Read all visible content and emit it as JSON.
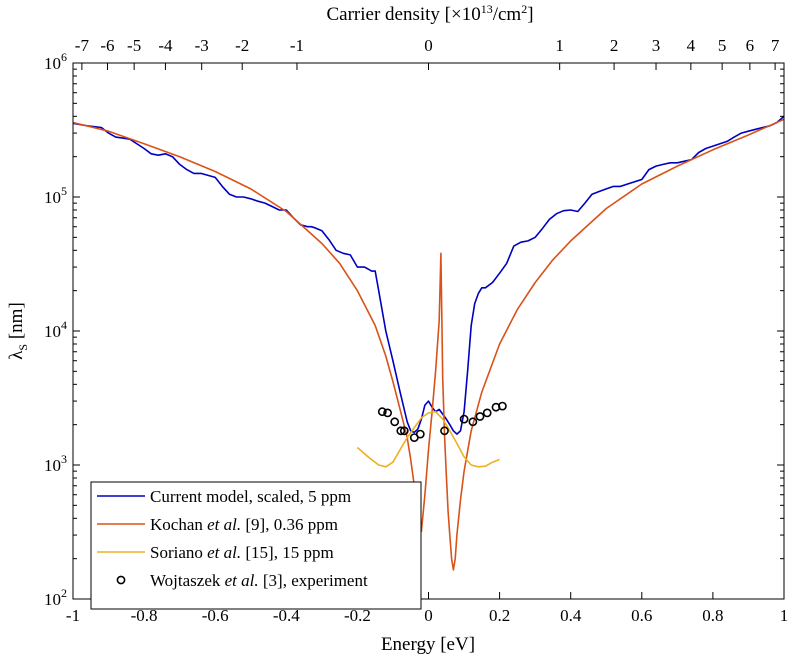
{
  "chart_data": {
    "type": "line",
    "title": "",
    "xlabel": "Energy [eV]",
    "ylabel": "λ",
    "ylabel_sub": "S",
    "ylabel_unit": " [nm]",
    "xlim": [
      -1,
      1
    ],
    "ylim": [
      100,
      1000000
    ],
    "yscale": "log",
    "grid": false,
    "x_ticks": [
      -1,
      -0.8,
      -0.6,
      -0.4,
      -0.2,
      0,
      0.2,
      0.4,
      0.6,
      0.8,
      1
    ],
    "x_tick_labels": [
      "-1",
      "-0.8",
      "-0.6",
      "-0.4",
      "-0.2",
      "0",
      "0.2",
      "0.4",
      "0.6",
      "0.8",
      "1"
    ],
    "y_ticks": [
      {
        "value": 100,
        "base": "10",
        "exp": "2"
      },
      {
        "value": 1000,
        "base": "10",
        "exp": "3"
      },
      {
        "value": 10000,
        "base": "10",
        "exp": "4"
      },
      {
        "value": 100000,
        "base": "10",
        "exp": "5"
      },
      {
        "value": 1000000,
        "base": "10",
        "exp": "6"
      }
    ],
    "top_axis": {
      "label": "Carrier density [×10",
      "label_exp": "13",
      "label_unit": "/cm",
      "label_unit_exp": "2",
      "label_end": "]",
      "ticks": [
        {
          "label": "-7",
          "energy": -0.975
        },
        {
          "label": "-6",
          "energy": -0.903
        },
        {
          "label": "-5",
          "energy": -0.828
        },
        {
          "label": "-4",
          "energy": -0.74
        },
        {
          "label": "-3",
          "energy": -0.638
        },
        {
          "label": "-2",
          "energy": -0.524
        },
        {
          "label": "-1",
          "energy": -0.37
        },
        {
          "label": "0",
          "energy": 0.0
        },
        {
          "label": "1",
          "energy": 0.369
        },
        {
          "label": "2",
          "energy": 0.522
        },
        {
          "label": "3",
          "energy": 0.64
        },
        {
          "label": "4",
          "energy": 0.738
        },
        {
          "label": "5",
          "energy": 0.826
        },
        {
          "label": "6",
          "energy": 0.904
        },
        {
          "label": "7",
          "energy": 0.975
        }
      ]
    },
    "legend_position": "bottom-left",
    "series": [
      {
        "name": "Current model, scaled, 5 ppm",
        "legend": {
          "pre": "Current model, scaled, 5 ppm",
          "italic": "",
          "post": ""
        },
        "color": "#0000c0",
        "style": "line",
        "x": [
          -1.0,
          -0.96,
          -0.92,
          -0.9,
          -0.88,
          -0.86,
          -0.84,
          -0.8,
          -0.78,
          -0.76,
          -0.74,
          -0.72,
          -0.7,
          -0.68,
          -0.66,
          -0.64,
          -0.62,
          -0.6,
          -0.58,
          -0.56,
          -0.54,
          -0.52,
          -0.5,
          -0.48,
          -0.46,
          -0.44,
          -0.42,
          -0.4,
          -0.38,
          -0.36,
          -0.34,
          -0.33,
          -0.32,
          -0.3,
          -0.28,
          -0.26,
          -0.24,
          -0.22,
          -0.2,
          -0.18,
          -0.17,
          -0.16,
          -0.15,
          -0.14,
          -0.12,
          -0.1,
          -0.08,
          -0.06,
          -0.05,
          -0.04,
          -0.03,
          -0.02,
          -0.01,
          0.0,
          0.01,
          0.02,
          0.03,
          0.04,
          0.05,
          0.06,
          0.07,
          0.08,
          0.09,
          0.1,
          0.11,
          0.12,
          0.13,
          0.14,
          0.15,
          0.16,
          0.18,
          0.2,
          0.22,
          0.24,
          0.26,
          0.28,
          0.3,
          0.32,
          0.34,
          0.36,
          0.38,
          0.4,
          0.42,
          0.44,
          0.46,
          0.48,
          0.5,
          0.52,
          0.54,
          0.56,
          0.58,
          0.6,
          0.62,
          0.64,
          0.66,
          0.68,
          0.7,
          0.72,
          0.74,
          0.76,
          0.78,
          0.8,
          0.82,
          0.84,
          0.86,
          0.88,
          0.9,
          0.92,
          0.94,
          0.96,
          0.98,
          1.0
        ],
        "y": [
          355000,
          340000,
          330000,
          300000,
          280000,
          275000,
          270000,
          230000,
          210000,
          205000,
          210000,
          200000,
          175000,
          160000,
          150000,
          150000,
          145000,
          140000,
          120000,
          105000,
          100000,
          100000,
          97000,
          93000,
          90000,
          85000,
          80000,
          80000,
          70000,
          62000,
          60000,
          60000,
          59000,
          56000,
          48000,
          40000,
          38000,
          37000,
          30000,
          30000,
          29000,
          28000,
          28000,
          20000,
          10000,
          6000,
          3500,
          2100,
          1800,
          1750,
          1850,
          2200,
          2800,
          3000,
          2700,
          2500,
          2600,
          2400,
          2200,
          2000,
          1800,
          1700,
          1800,
          2500,
          5000,
          11000,
          16000,
          19000,
          21000,
          21000,
          23000,
          27000,
          32000,
          43000,
          46000,
          47000,
          50000,
          58000,
          68000,
          75000,
          79000,
          80000,
          78000,
          90000,
          105000,
          110000,
          115000,
          120000,
          120000,
          125000,
          130000,
          135000,
          160000,
          170000,
          175000,
          180000,
          180000,
          185000,
          190000,
          215000,
          230000,
          240000,
          250000,
          260000,
          280000,
          300000,
          310000,
          320000,
          330000,
          340000,
          360000,
          400000
        ]
      },
      {
        "name": "Kochan et al. [9], 0.36 ppm",
        "legend": {
          "pre": "Kochan ",
          "italic": "et al.",
          "post": " [9], 0.36 ppm"
        },
        "color": "#d95319",
        "style": "line",
        "x": [
          -1.0,
          -0.9,
          -0.8,
          -0.7,
          -0.6,
          -0.5,
          -0.4,
          -0.3,
          -0.25,
          -0.2,
          -0.15,
          -0.12,
          -0.1,
          -0.08,
          -0.06,
          -0.05,
          -0.04,
          -0.03,
          -0.02,
          -0.01,
          0.0,
          0.01,
          0.02,
          0.03,
          0.035,
          0.04,
          0.045,
          0.05,
          0.055,
          0.06,
          0.065,
          0.07,
          0.075,
          0.08,
          0.09,
          0.1,
          0.12,
          0.15,
          0.2,
          0.25,
          0.3,
          0.35,
          0.4,
          0.5,
          0.6,
          0.7,
          0.8,
          0.9,
          1.0
        ],
        "y": [
          360000,
          310000,
          250000,
          200000,
          155000,
          115000,
          78000,
          45000,
          32000,
          20000,
          11000,
          6500,
          4200,
          2600,
          1600,
          1100,
          700,
          420,
          320,
          600,
          1300,
          2500,
          5000,
          12000,
          38000,
          4500,
          1700,
          850,
          450,
          300,
          200,
          165,
          200,
          300,
          550,
          900,
          1800,
          3500,
          8000,
          14500,
          23000,
          34000,
          47000,
          82000,
          125000,
          170000,
          225000,
          290000,
          380000
        ]
      },
      {
        "name": "Soriano et al. [15], 15 ppm",
        "legend": {
          "pre": "Soriano ",
          "italic": "et al.",
          "post": " [15], 15 ppm"
        },
        "color": "#edb120",
        "style": "line",
        "x": [
          -0.2,
          -0.17,
          -0.14,
          -0.12,
          -0.1,
          -0.08,
          -0.06,
          -0.04,
          -0.02,
          0.0,
          0.02,
          0.04,
          0.06,
          0.08,
          0.1,
          0.12,
          0.14,
          0.16,
          0.18,
          0.2
        ],
        "y": [
          1350,
          1150,
          1000,
          970,
          1050,
          1300,
          1600,
          1900,
          2250,
          2450,
          2500,
          2200,
          1800,
          1450,
          1150,
          1000,
          970,
          980,
          1050,
          1100
        ]
      },
      {
        "name": "Wojtaszek et al. [3], experiment",
        "legend": {
          "pre": "Wojtaszek ",
          "italic": "et al.",
          "post": " [3], experiment"
        },
        "color": "#000000",
        "style": "marker",
        "x": [
          -0.13,
          -0.115,
          -0.095,
          -0.078,
          -0.068,
          -0.04,
          -0.023,
          0.045,
          0.1,
          0.125,
          0.145,
          0.165,
          0.19,
          0.208
        ],
        "y": [
          2500,
          2450,
          2100,
          1800,
          1800,
          1600,
          1700,
          1800,
          2200,
          2100,
          2300,
          2450,
          2700,
          2750
        ]
      }
    ]
  }
}
